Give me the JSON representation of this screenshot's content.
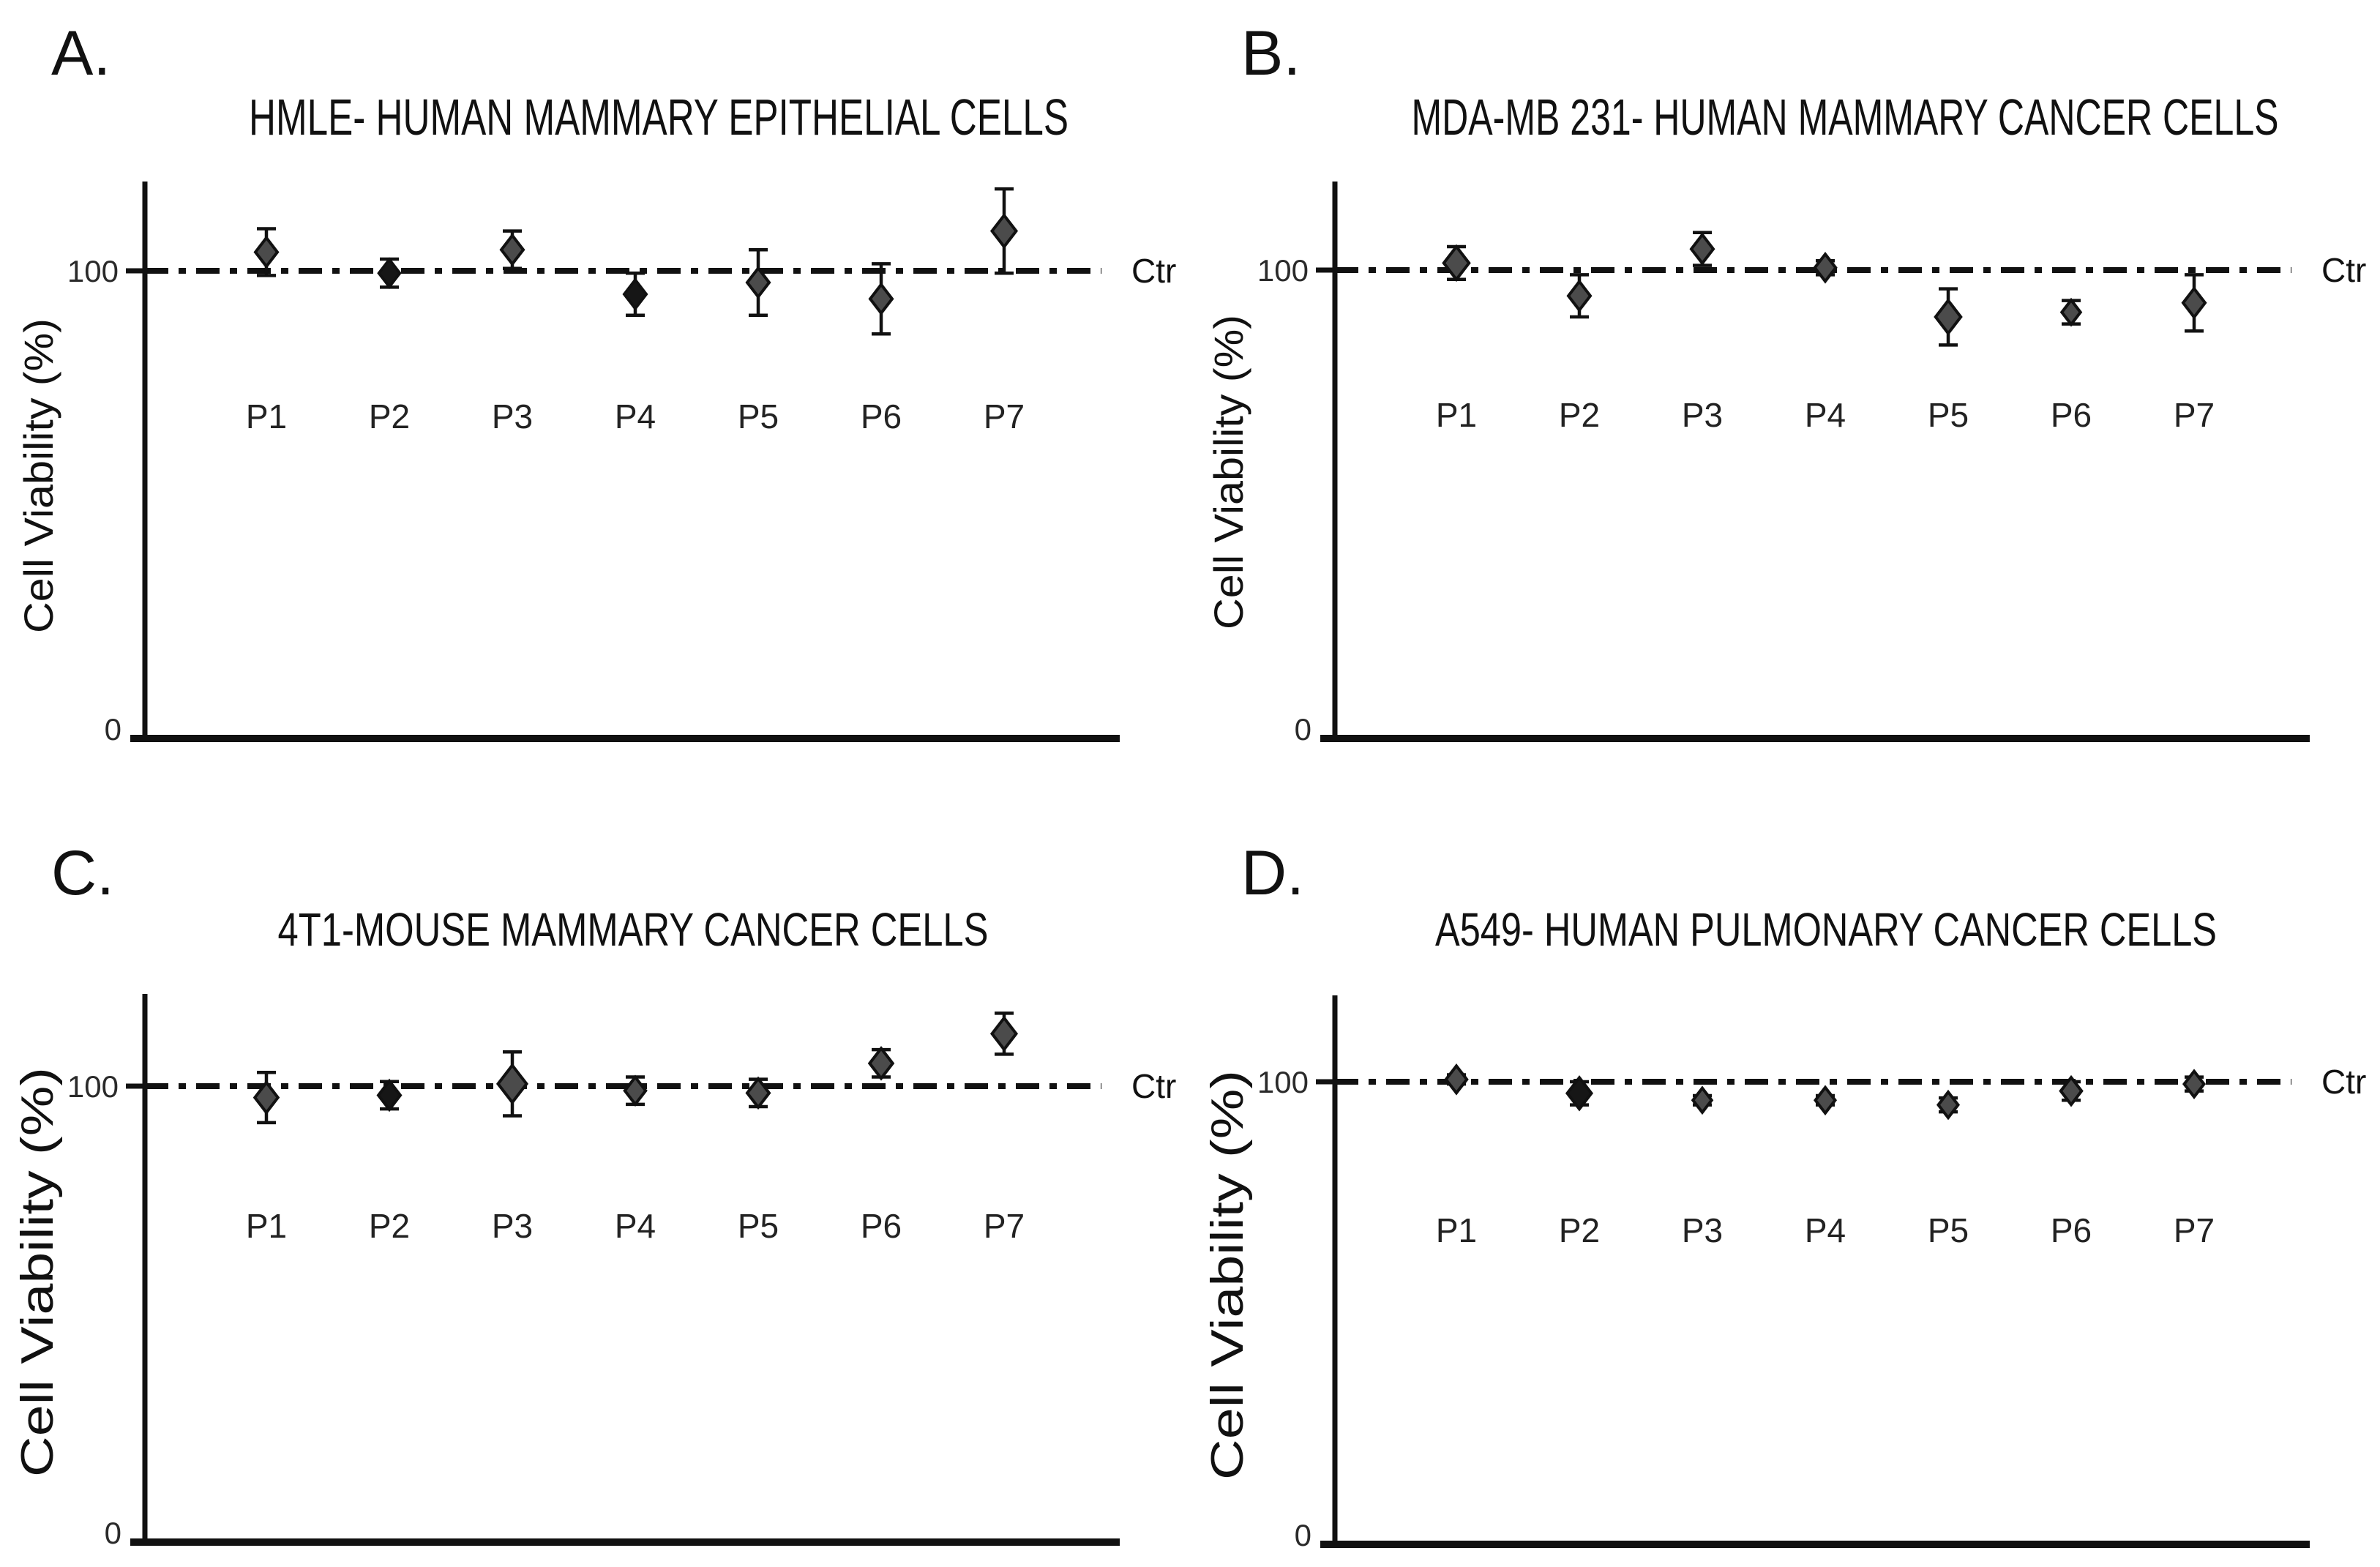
{
  "figure": {
    "ylabel": "Cell Viability (%)",
    "control_label": "Ctr",
    "ink_color": "#111111",
    "marker_gray": "#4b4b4b",
    "marker_black": "#161616"
  },
  "chart_data": [
    {
      "panel_letter": "A.",
      "type": "scatter",
      "title": "HMLE- HUMAN MAMMARY EPITHELIAL CELLS",
      "ylabel": "Cell Viability (%)",
      "xlabel": "",
      "yticks": [
        0,
        100
      ],
      "ylim": [
        0,
        120
      ],
      "grid": false,
      "control_line": {
        "value": 100,
        "label": "Ctr",
        "style": "dash-dot"
      },
      "categories": [
        "P1",
        "P2",
        "P3",
        "P4",
        "P5",
        "P6",
        "P7"
      ],
      "values": [
        104,
        99.5,
        104.5,
        95,
        97.5,
        94,
        108.5
      ],
      "errors": [
        5,
        3,
        4,
        4.5,
        7,
        7.5,
        9
      ],
      "marker": "diamond",
      "point_fills": [
        "#4b4b4b",
        "#161616",
        "#4b4b4b",
        "#161616",
        "#4b4b4b",
        "#4b4b4b",
        "#4b4b4b"
      ],
      "point_scales": [
        1,
        0.95,
        1,
        1,
        1,
        1,
        1.1
      ]
    },
    {
      "panel_letter": "B.",
      "type": "scatter",
      "title": "MDA-MB 231- HUMAN MAMMARY CANCER CELLS",
      "ylabel": "Cell Viability (%)",
      "xlabel": "",
      "yticks": [
        0,
        100
      ],
      "ylim": [
        0,
        120
      ],
      "grid": false,
      "control_line": {
        "value": 100,
        "label": "Ctr",
        "style": "dash-dot"
      },
      "categories": [
        "P1",
        "P2",
        "P3",
        "P4",
        "P5",
        "P6",
        "P7"
      ],
      "values": [
        101.5,
        94.5,
        104.5,
        100.5,
        90,
        91,
        93
      ],
      "errors": [
        3.5,
        4.5,
        3.5,
        1.5,
        6,
        2.5,
        6
      ],
      "marker": "diamond",
      "point_fills": [
        "#4b4b4b",
        "#4b4b4b",
        "#4b4b4b",
        "#4b4b4b",
        "#4b4b4b",
        "#4b4b4b",
        "#4b4b4b"
      ],
      "point_scales": [
        1.15,
        1,
        1,
        0.95,
        1.15,
        0.85,
        1
      ]
    },
    {
      "panel_letter": "C.",
      "type": "scatter",
      "title": "4T1-MOUSE MAMMARY CANCER CELLS",
      "ylabel": "Cell Viability (%)",
      "xlabel": "",
      "yticks": [
        0,
        100
      ],
      "ylim": [
        0,
        120
      ],
      "grid": false,
      "control_line": {
        "value": 100,
        "label": "Ctr",
        "style": "dash-dot"
      },
      "categories": [
        "P1",
        "P2",
        "P3",
        "P4",
        "P5",
        "P6",
        "P7"
      ],
      "values": [
        97.5,
        98,
        100.5,
        99,
        98.5,
        105,
        111.5
      ],
      "errors": [
        5.5,
        3,
        7,
        3,
        3,
        3,
        4.5
      ],
      "marker": "diamond",
      "point_fills": [
        "#4b4b4b",
        "#161616",
        "#4b4b4b",
        "#4b4b4b",
        "#4b4b4b",
        "#4b4b4b",
        "#4b4b4b"
      ],
      "point_scales": [
        1.05,
        1,
        1.3,
        0.95,
        1,
        1.05,
        1.1
      ]
    },
    {
      "panel_letter": "D.",
      "type": "scatter",
      "title": "A549- HUMAN PULMONARY CANCER CELLS",
      "ylabel": "Cell Viability (%)",
      "xlabel": "",
      "yticks": [
        0,
        100
      ],
      "ylim": [
        0,
        120
      ],
      "grid": false,
      "control_line": {
        "value": 100,
        "label": "Ctr",
        "style": "dash-dot"
      },
      "categories": [
        "P1",
        "P2",
        "P3",
        "P4",
        "P5",
        "P6",
        "P7"
      ],
      "values": [
        100.5,
        97.5,
        96,
        96,
        95,
        98,
        99.5
      ],
      "errors": [
        1,
        2.5,
        1,
        1,
        1.5,
        2,
        1.5
      ],
      "marker": "diamond",
      "point_fills": [
        "#4b4b4b",
        "#161616",
        "#4b4b4b",
        "#4b4b4b",
        "#4b4b4b",
        "#4b4b4b",
        "#4b4b4b"
      ],
      "point_scales": [
        0.95,
        1.1,
        0.85,
        0.9,
        0.9,
        0.95,
        0.9
      ]
    }
  ]
}
